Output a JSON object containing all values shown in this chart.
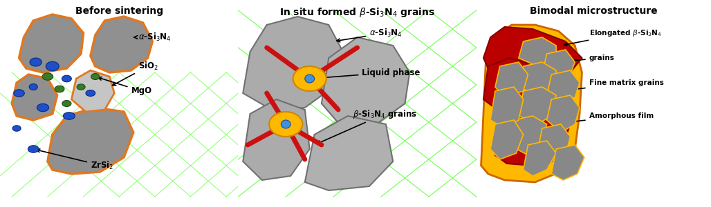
{
  "panel1_title": "Before sintering",
  "panel2_title": "In situ formed β-Si₃N₄ grains",
  "panel3_title": "Bimodal microstructure",
  "colors": {
    "alpha_grain": "#909090",
    "alpha_grain_border": "#E07820",
    "sio2": "#C8C8C8",
    "mgo": "#3A7A28",
    "zrsi2": "#1E4FC8",
    "liquid_phase": "#FFB800",
    "beta_rod": "#CC1010",
    "beta_center": "#4090E0",
    "gray_grain2": "#A0A0A0",
    "elongated_beta": "#BB0000",
    "fine_matrix": "#888888",
    "amorphous_film": "#FFB800",
    "green_line": "#66FF44",
    "white": "#FFFFFF",
    "black": "#000000",
    "dark_orange": "#CC6600"
  }
}
